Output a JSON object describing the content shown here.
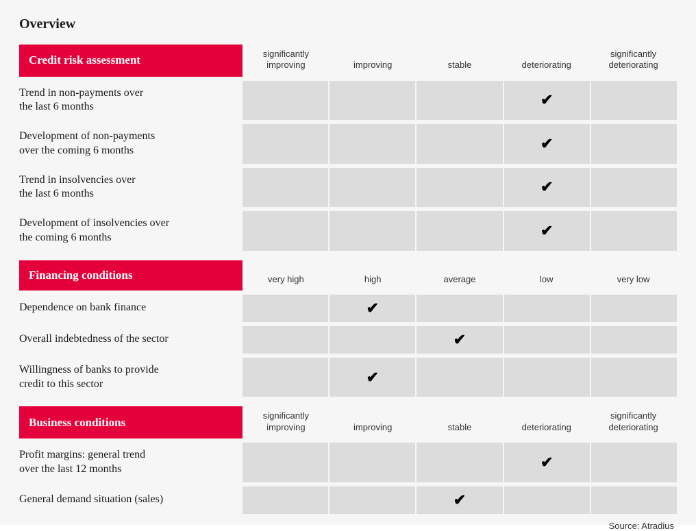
{
  "title": "Overview",
  "source": "Source: Atradius",
  "sections": [
    {
      "header": "Credit risk assessment",
      "columns": [
        "significantly\nimproving",
        "improving",
        "stable",
        "deteriorating",
        "significantly\ndeteriorating"
      ],
      "rows": [
        {
          "label": "Trend in non-payments over\nthe last 6 months",
          "checked": 3
        },
        {
          "label": "Development of non-payments\nover the coming 6 months",
          "checked": 3
        },
        {
          "label": "Trend in insolvencies over\nthe last 6 months",
          "checked": 3
        },
        {
          "label": "Development of insolvencies over\nthe coming 6 months",
          "checked": 3
        }
      ]
    },
    {
      "header": "Financing conditions",
      "columns": [
        "very high",
        "high",
        "average",
        "low",
        "very low"
      ],
      "rows": [
        {
          "label": "Dependence on bank finance",
          "checked": 1
        },
        {
          "label": "Overall indebtedness of the sector",
          "checked": 2
        },
        {
          "label": "Willingness of banks to provide\ncredit to this sector",
          "checked": 1
        }
      ]
    },
    {
      "header": "Business conditions",
      "columns": [
        "significantly\nimproving",
        "improving",
        "stable",
        "deteriorating",
        "significantly\ndeteriorating"
      ],
      "rows": [
        {
          "label": "Profit margins: general trend\nover the last 12 months",
          "checked": 3
        },
        {
          "label": "General demand situation (sales)",
          "checked": 2
        }
      ]
    }
  ],
  "styling": {
    "background_color": "#f6f6f6",
    "header_bg": "#e4003a",
    "header_text_color": "#ffffff",
    "cell_bg": "#dcdcdc",
    "text_color": "#1a1a1a",
    "col_header_fontsize": 13,
    "row_label_fontsize": 16,
    "title_fontsize": 20,
    "check_glyph": "✔",
    "label_col_width": 326,
    "num_cols": 5
  }
}
